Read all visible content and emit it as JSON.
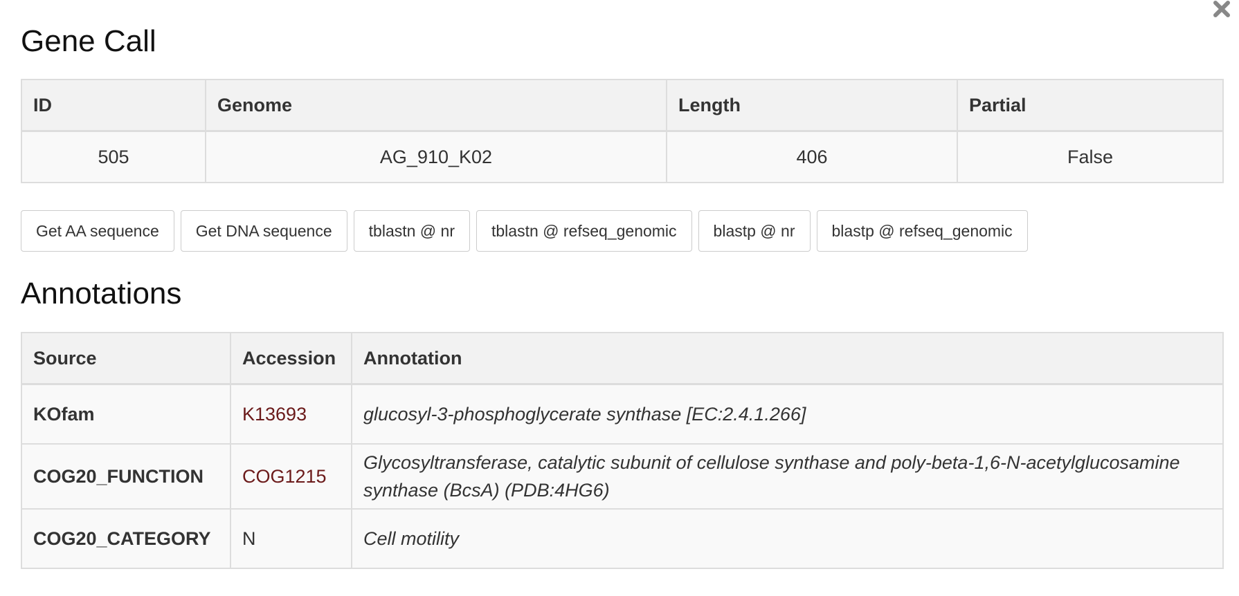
{
  "gene_call": {
    "title": "Gene Call",
    "headers": [
      "ID",
      "Genome",
      "Length",
      "Partial"
    ],
    "row": [
      "505",
      "AG_910_K02",
      "406",
      "False"
    ]
  },
  "buttons": [
    "Get AA sequence",
    "Get DNA sequence",
    "tblastn @ nr",
    "tblastn @ refseq_genomic",
    "blastp @ nr",
    "blastp @ refseq_genomic"
  ],
  "annotations": {
    "title": "Annotations",
    "headers": [
      "Source",
      "Accession",
      "Annotation"
    ],
    "rows": [
      {
        "source": "KOfam",
        "accession": "K13693",
        "annotation": "glucosyl-3-phosphoglycerate synthase [EC:2.4.1.266]"
      },
      {
        "source": "COG20_FUNCTION",
        "accession": "COG1215",
        "annotation": "Glycosyltransferase, catalytic subunit of cellulose synthase and poly-beta-1,6-N-acetylglucosamine synthase (BcsA) (PDB:4HG6)"
      },
      {
        "source": "COG20_CATEGORY",
        "accession": "N",
        "annotation": "Cell motility"
      }
    ]
  },
  "icons": {
    "close": "close-icon"
  },
  "colors": {
    "accession_link": "#6b1a1a",
    "header_bg": "#f2f2f2",
    "cell_bg": "#f9f9f9",
    "border": "#dddddd"
  }
}
